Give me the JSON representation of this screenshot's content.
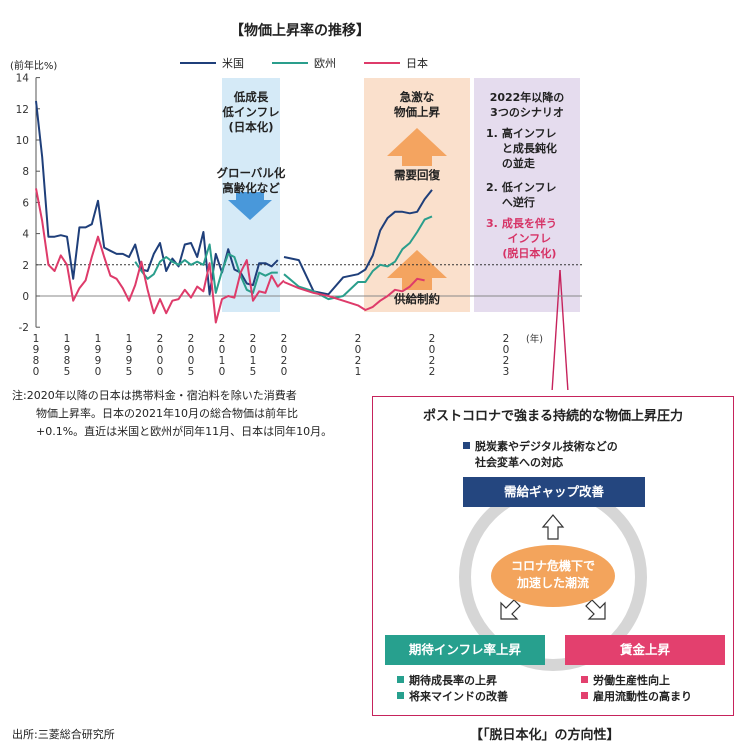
{
  "chart_data": {
    "type": "line",
    "title": "【物価上昇率の推移】",
    "ylabel": "(前年比%)",
    "ylim": [
      -2,
      14
    ],
    "yticks": [
      -2,
      0,
      2,
      4,
      6,
      8,
      10,
      12,
      14
    ],
    "xticks": [
      {
        "x": 1980,
        "label": "1980"
      },
      {
        "x": 1985,
        "label": "1985"
      },
      {
        "x": 1990,
        "label": "1990"
      },
      {
        "x": 1995,
        "label": "1995"
      },
      {
        "x": 2000,
        "label": "2000"
      },
      {
        "x": 2005,
        "label": "2005"
      },
      {
        "x": 2010,
        "label": "2010"
      },
      {
        "x": 2015,
        "label": "2015"
      },
      {
        "x": 2020,
        "label": "2020"
      },
      {
        "x": 2021,
        "label": "2021"
      },
      {
        "x": 2022,
        "label": "2022"
      },
      {
        "x": 2023,
        "label": "2023"
      }
    ],
    "x_unit": "(年)",
    "reference_line": 2,
    "grid": false,
    "legend_position": "top",
    "series": [
      {
        "name": "米国",
        "color": "#1f3f7a",
        "segments": [
          [
            [
              1980,
              12.5
            ],
            [
              1981,
              8.9
            ],
            [
              1982,
              3.8
            ],
            [
              1983,
              3.8
            ],
            [
              1984,
              3.9
            ],
            [
              1985,
              3.8
            ],
            [
              1986,
              1.1
            ],
            [
              1987,
              4.4
            ],
            [
              1988,
              4.4
            ],
            [
              1989,
              4.6
            ],
            [
              1990,
              6.1
            ],
            [
              1991,
              3.1
            ],
            [
              1992,
              2.9
            ],
            [
              1993,
              2.7
            ],
            [
              1994,
              2.7
            ],
            [
              1995,
              2.5
            ],
            [
              1996,
              3.3
            ],
            [
              1997,
              1.7
            ],
            [
              1998,
              1.6
            ],
            [
              1999,
              2.7
            ],
            [
              2000,
              3.4
            ],
            [
              2001,
              1.6
            ],
            [
              2002,
              2.4
            ],
            [
              2003,
              1.9
            ],
            [
              2004,
              3.3
            ],
            [
              2005,
              3.4
            ],
            [
              2006,
              2.5
            ],
            [
              2007,
              4.1
            ],
            [
              2008,
              0.1
            ],
            [
              2009,
              2.7
            ],
            [
              2010,
              1.5
            ],
            [
              2011,
              3.0
            ],
            [
              2012,
              1.7
            ],
            [
              2013,
              1.5
            ],
            [
              2014,
              0.8
            ],
            [
              2015,
              0.7
            ],
            [
              2016,
              2.1
            ],
            [
              2017,
              2.1
            ],
            [
              2018,
              1.9
            ],
            [
              2019,
              2.3
            ]
          ],
          [
            [
              2020.0,
              2.5
            ],
            [
              2020.2,
              2.3
            ],
            [
              2020.4,
              0.3
            ],
            [
              2020.6,
              0.1
            ],
            [
              2020.8,
              1.2
            ],
            [
              2021.0,
              1.4
            ],
            [
              2021.1,
              1.7
            ],
            [
              2021.2,
              2.6
            ],
            [
              2021.3,
              4.2
            ],
            [
              2021.4,
              5.0
            ],
            [
              2021.5,
              5.4
            ],
            [
              2021.6,
              5.4
            ],
            [
              2021.7,
              5.3
            ],
            [
              2021.8,
              5.4
            ],
            [
              2021.9,
              6.2
            ],
            [
              2022.0,
              6.8
            ]
          ]
        ]
      },
      {
        "name": "欧州",
        "color": "#2a9e8c",
        "segments": [
          [
            [
              1996,
              2.2
            ],
            [
              1997,
              1.6
            ],
            [
              1998,
              1.1
            ],
            [
              1999,
              1.4
            ],
            [
              2000,
              2.2
            ],
            [
              2001,
              2.5
            ],
            [
              2002,
              2.2
            ],
            [
              2003,
              2.0
            ],
            [
              2004,
              2.3
            ],
            [
              2005,
              2.0
            ],
            [
              2006,
              2.2
            ],
            [
              2007,
              2.0
            ],
            [
              2008,
              3.3
            ],
            [
              2009,
              0.2
            ],
            [
              2010,
              1.6
            ],
            [
              2011,
              2.7
            ],
            [
              2012,
              2.5
            ],
            [
              2013,
              1.3
            ],
            [
              2014,
              0.4
            ],
            [
              2015,
              0.2
            ],
            [
              2016,
              1.5
            ],
            [
              2017,
              1.3
            ],
            [
              2018,
              1.5
            ],
            [
              2019,
              1.5
            ]
          ],
          [
            [
              2020.0,
              1.4
            ],
            [
              2020.2,
              0.6
            ],
            [
              2020.4,
              0.3
            ],
            [
              2020.6,
              -0.2
            ],
            [
              2020.8,
              0.0
            ],
            [
              2021.0,
              0.9
            ],
            [
              2021.1,
              0.9
            ],
            [
              2021.2,
              1.6
            ],
            [
              2021.3,
              2.0
            ],
            [
              2021.4,
              1.9
            ],
            [
              2021.5,
              2.2
            ],
            [
              2021.6,
              3.0
            ],
            [
              2021.7,
              3.4
            ],
            [
              2021.8,
              4.1
            ],
            [
              2021.9,
              4.9
            ],
            [
              2022.0,
              5.1
            ]
          ]
        ]
      },
      {
        "name": "日本",
        "color": "#de3b6a",
        "segments": [
          [
            [
              1980,
              6.9
            ],
            [
              1981,
              4.8
            ],
            [
              1982,
              2.0
            ],
            [
              1983,
              1.6
            ],
            [
              1984,
              2.6
            ],
            [
              1985,
              2.0
            ],
            [
              1986,
              -0.3
            ],
            [
              1987,
              0.5
            ],
            [
              1988,
              1.0
            ],
            [
              1989,
              2.5
            ],
            [
              1990,
              3.8
            ],
            [
              1991,
              2.5
            ],
            [
              1992,
              1.3
            ],
            [
              1993,
              1.1
            ],
            [
              1994,
              0.5
            ],
            [
              1995,
              -0.3
            ],
            [
              1996,
              0.7
            ],
            [
              1997,
              2.2
            ],
            [
              1998,
              0.4
            ],
            [
              1999,
              -1.1
            ],
            [
              2000,
              -0.2
            ],
            [
              2001,
              -1.1
            ],
            [
              2002,
              -0.3
            ],
            [
              2003,
              -0.2
            ],
            [
              2004,
              0.4
            ],
            [
              2005,
              -0.1
            ],
            [
              2006,
              0.6
            ],
            [
              2007,
              0.3
            ],
            [
              2008,
              2.1
            ],
            [
              2009,
              -1.7
            ],
            [
              2010,
              -0.2
            ],
            [
              2011,
              0.0
            ],
            [
              2012,
              -0.1
            ],
            [
              2013,
              1.5
            ],
            [
              2014,
              2.3
            ],
            [
              2015,
              -0.3
            ],
            [
              2016,
              0.3
            ],
            [
              2017,
              0.2
            ],
            [
              2018,
              1.3
            ],
            [
              2019,
              0.6
            ],
            [
              2020,
              1.0
            ]
          ],
          [
            [
              2020.0,
              0.9
            ],
            [
              2020.2,
              0.5
            ],
            [
              2020.4,
              0.2
            ],
            [
              2020.6,
              0.0
            ],
            [
              2020.8,
              -0.3
            ],
            [
              2021.0,
              -0.6
            ],
            [
              2021.1,
              -0.9
            ],
            [
              2021.2,
              -0.7
            ],
            [
              2021.3,
              -0.3
            ],
            [
              2021.4,
              0.0
            ],
            [
              2021.5,
              0.4
            ],
            [
              2021.6,
              0.3
            ],
            [
              2021.7,
              0.6
            ],
            [
              2021.8,
              1.1
            ],
            [
              2021.9,
              1.0
            ]
          ]
        ]
      }
    ]
  },
  "shaded_regions": {
    "low": {
      "color": "#d5eaf7",
      "lines": [
        "低成長",
        "低インフレ",
        "(日本化)"
      ],
      "arrow_lines": [
        "グローバル化",
        "高齢化など"
      ]
    },
    "surge": {
      "color": "#fae0cc",
      "lines": [
        "急激な",
        "物価上昇"
      ],
      "up_label": "需要回復",
      "down_label": "供給制約"
    },
    "scenario": {
      "color": "#e5dcee",
      "lines": [
        "2022年以降の",
        "3つのシナリオ"
      ],
      "items": [
        {
          "num": "1.",
          "lines": [
            "高インフレ",
            "と成長鈍化",
            "の並走"
          ],
          "color": "#222222"
        },
        {
          "num": "2.",
          "lines": [
            "低インフレ",
            "へ逆行"
          ],
          "color": "#222222"
        },
        {
          "num": "3.",
          "lines": [
            "成長を伴う",
            "インフレ",
            "(脱日本化)"
          ],
          "color": "#d63366"
        }
      ]
    }
  },
  "note": [
    "注:2020年以降の日本は携帯料金・宿泊料を除いた消費者",
    "物価上昇率。日本の2021年10月の総合物価は前年比",
    "+0.1%。直近は米国と欧州が同年11月、日本は同年10月。"
  ],
  "source": "出所:三菱総合研究所",
  "post_corona": {
    "title": "ポストコロナで強まる持続的な物価上昇圧力",
    "top_bullet": [
      "脱炭素やデジタル技術などの",
      "社会変革への対応"
    ],
    "top_box": "需給ギャップ改善",
    "center": [
      "コロナ危機下で",
      "加速した潮流"
    ],
    "left_box": "期待インフレ率上昇",
    "left_bullets": [
      "期待成長率の上昇",
      "将来マインドの改善"
    ],
    "right_box": "賃金上昇",
    "right_bullets": [
      "労働生産性向上",
      "雇用流動性の高まり"
    ],
    "navy": "#24467f",
    "teal": "#27a08e",
    "pink": "#e3406e"
  },
  "footer_title": "【「脱日本化」の方向性】"
}
